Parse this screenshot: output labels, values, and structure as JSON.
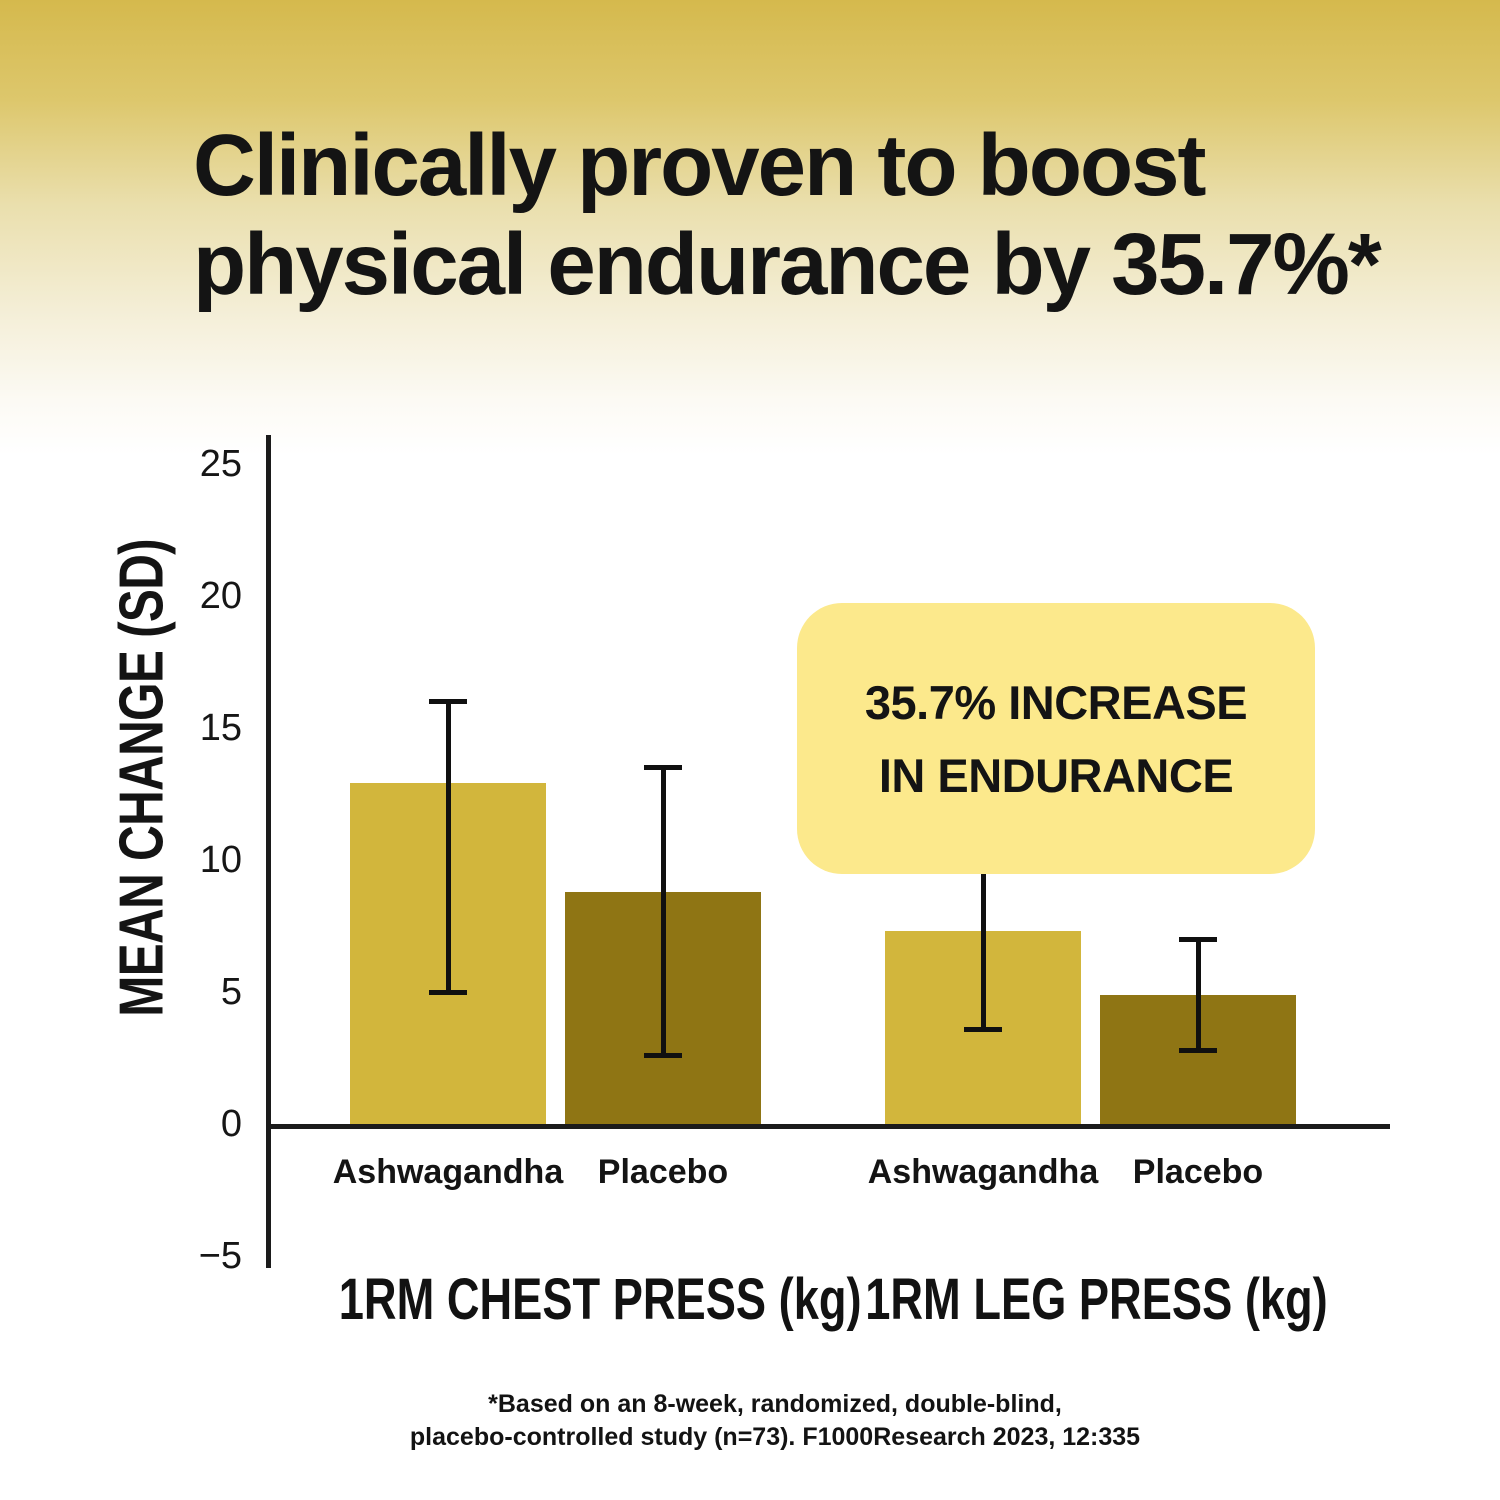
{
  "title": {
    "line1": "Clinically proven to boost",
    "line2": "physical endurance by 35.7%*"
  },
  "callout": {
    "line1": "35.7% INCREASE",
    "line2": "IN ENDURANCE"
  },
  "footnote": {
    "line1": "*Based on an 8-week, randomized, double-blind,",
    "line2": "placebo-controlled study (n=73). F1000Research 2023, 12:335"
  },
  "colors": {
    "gradient_top": "#d5b94d",
    "ashwagandha_bar": "#d2b63c",
    "placebo_bar": "#8f7514",
    "callout_bg": "#fce98c",
    "axis": "#1b1b1b",
    "text": "#141414"
  },
  "chart_data": {
    "type": "bar",
    "title": "",
    "xlabel": "",
    "ylabel": "MEAN CHANGE (SD)",
    "ylim": [
      -5,
      25
    ],
    "yticks": [
      25,
      20,
      15,
      10,
      5,
      0,
      -5
    ],
    "grid": false,
    "legend_position": "none",
    "error_bars": true,
    "series_colors": {
      "ashwagandha": "#d2b63c",
      "placebo": "#8f7514"
    },
    "groups": [
      {
        "label": "1RM CHEST PRESS (kg)",
        "bars": [
          {
            "category": "Ashwagandha",
            "series": "ashwagandha",
            "value": 12.9,
            "error_low": 4.9,
            "error_high": 16.1
          },
          {
            "category": "Placebo",
            "series": "placebo",
            "value": 8.8,
            "error_low": 2.5,
            "error_high": 13.6
          }
        ]
      },
      {
        "label": "1RM LEG PRESS (kg)",
        "bars": [
          {
            "category": "Ashwagandha",
            "series": "ashwagandha",
            "value": 7.3,
            "error_low": 3.5,
            "error_high": 10.0
          },
          {
            "category": "Placebo",
            "series": "placebo",
            "value": 4.9,
            "error_low": 2.7,
            "error_high": 7.1
          }
        ]
      }
    ]
  }
}
